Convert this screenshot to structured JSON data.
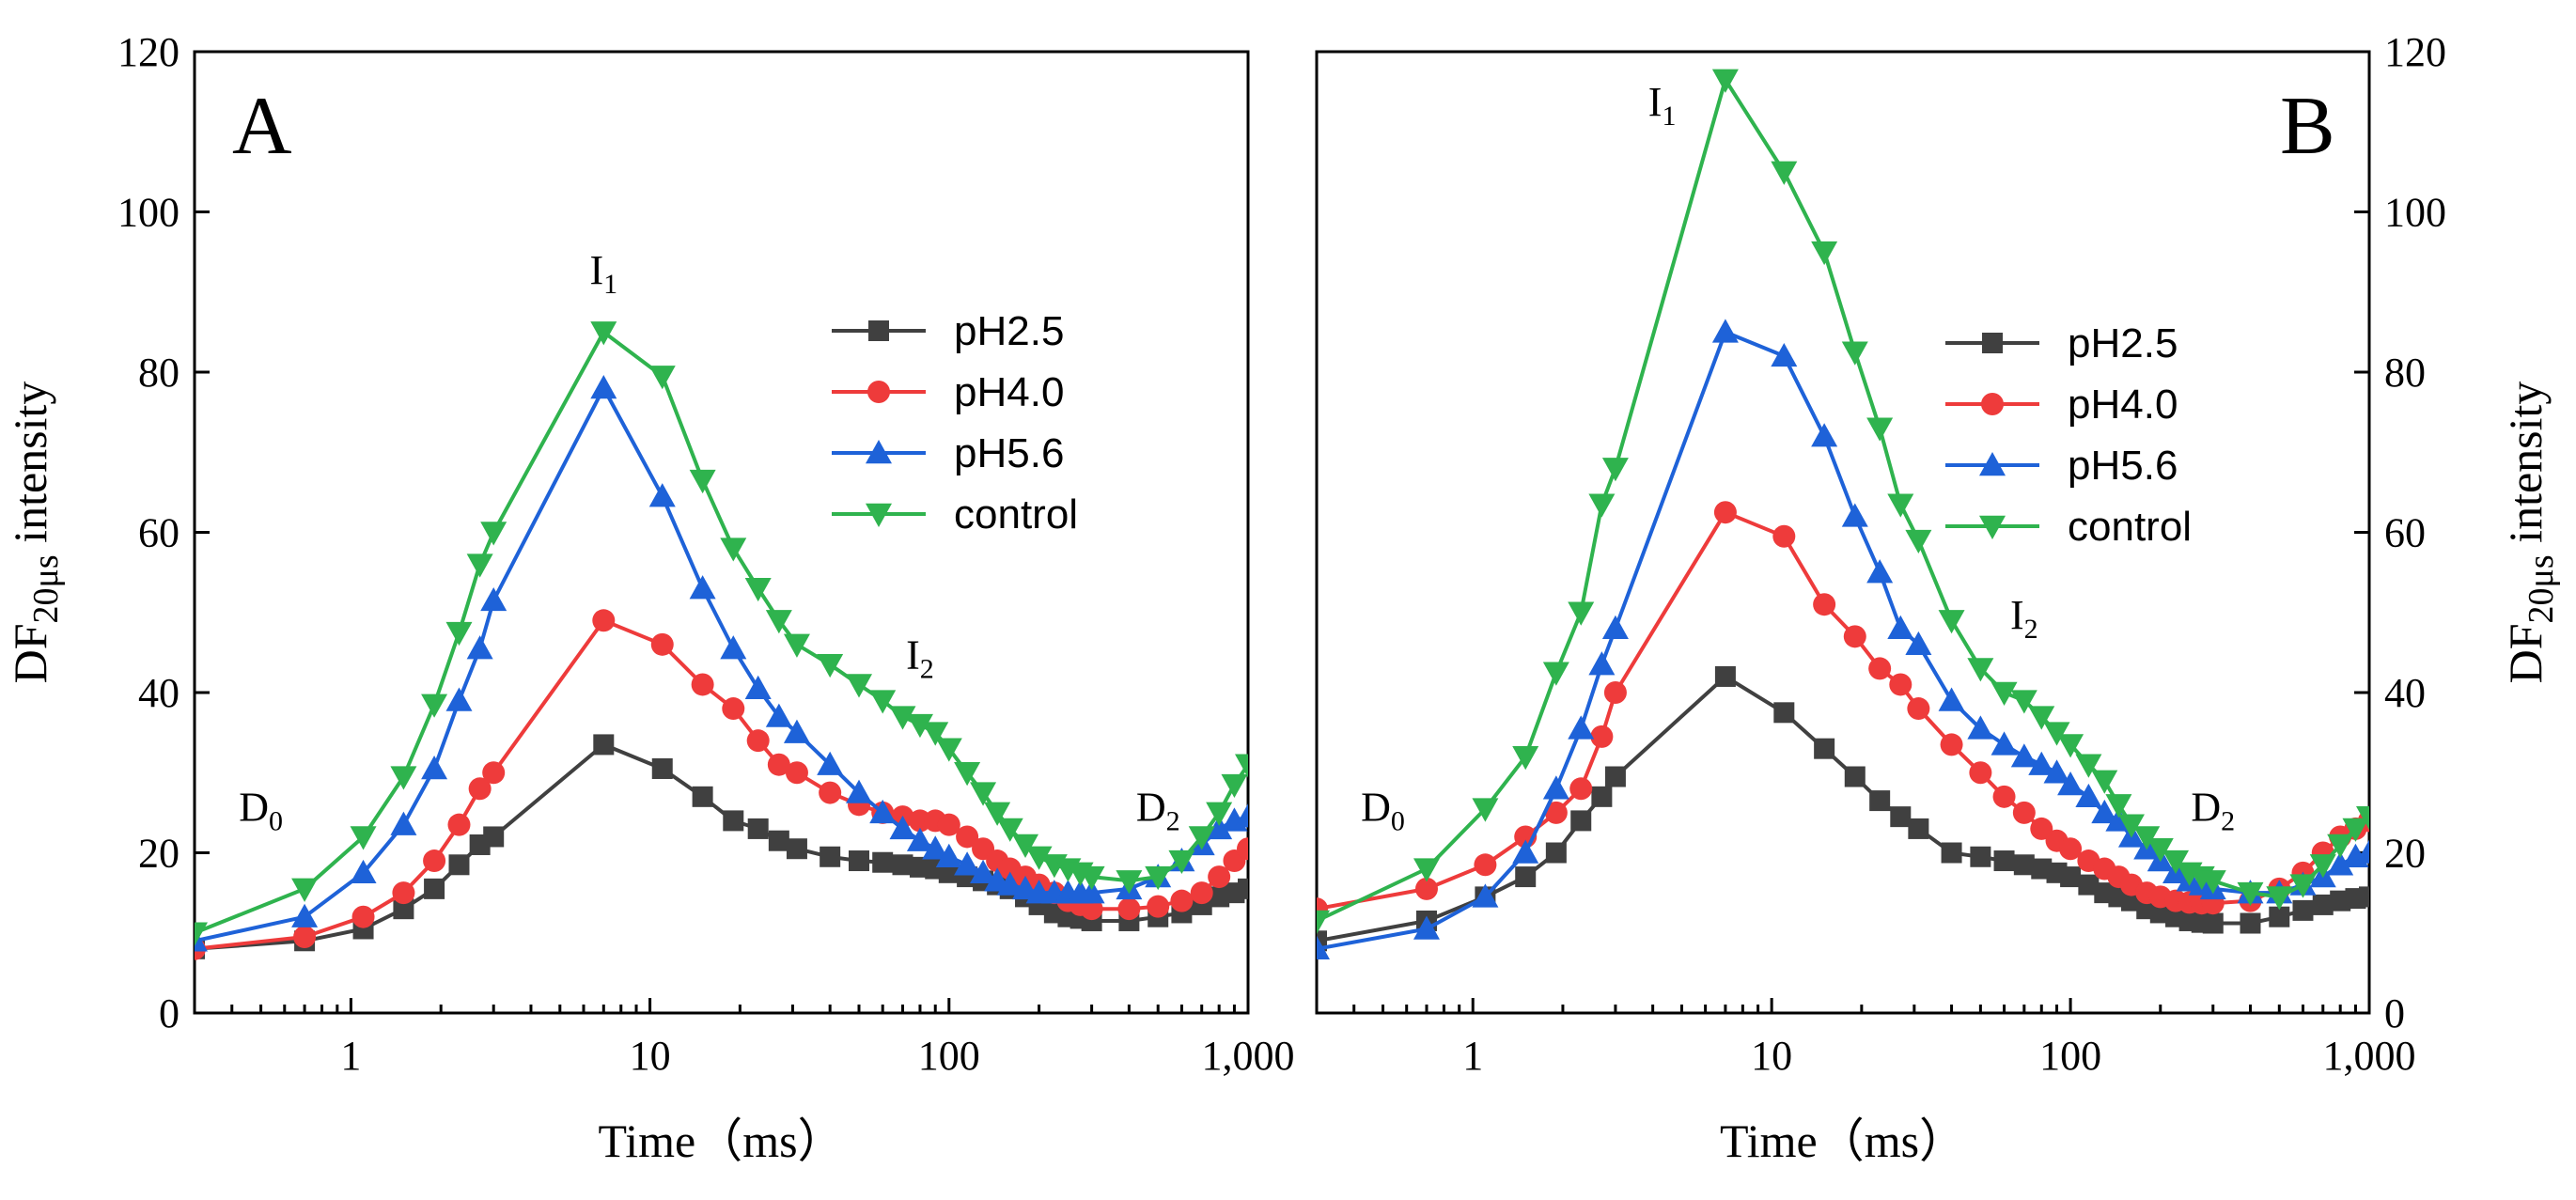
{
  "chart_data": [
    {
      "type": "line",
      "panel_label": "A",
      "xlabel": "Time（ms）",
      "ylabel": {
        "main": "DF",
        "sub": "20μs",
        "rest": " intensity"
      },
      "xscale": "log",
      "xlim": [
        0.3,
        1000
      ],
      "ylim": [
        0,
        120
      ],
      "xticks": [
        1,
        10,
        100,
        1000
      ],
      "xtick_labels": [
        "1",
        "10",
        "100",
        "1,000"
      ],
      "yticks": [
        0,
        20,
        40,
        60,
        80,
        100,
        120
      ],
      "ytick_labels": [
        "0",
        "20",
        "40",
        "60",
        "80",
        "100",
        "120"
      ],
      "yaxis_side": "left",
      "legend_position": "upper-right",
      "annotations": [
        {
          "main": "D",
          "sub": "0",
          "x": 0.5,
          "y": 24
        },
        {
          "main": "I",
          "sub": "1",
          "x": 7,
          "y": 91
        },
        {
          "main": "I",
          "sub": "2",
          "x": 80,
          "y": 43
        },
        {
          "main": "D",
          "sub": "2",
          "x": 500,
          "y": 24
        }
      ],
      "series": [
        {
          "name": "pH2.5",
          "color": "#404040",
          "marker": "square",
          "x": [
            0.3,
            0.7,
            1.1,
            1.5,
            1.9,
            2.3,
            2.7,
            3,
            7,
            11,
            15,
            19,
            23,
            27,
            31,
            40,
            50,
            60,
            70,
            80,
            90,
            100,
            115,
            130,
            145,
            160,
            180,
            200,
            225,
            250,
            275,
            300,
            400,
            500,
            600,
            700,
            800,
            900,
            1000
          ],
          "y": [
            8,
            9,
            10.5,
            13,
            15.5,
            18.5,
            21,
            22,
            33.5,
            30.5,
            27,
            24,
            23,
            21.5,
            20.5,
            19.5,
            19,
            18.8,
            18.5,
            18.2,
            18,
            17.5,
            17,
            16.5,
            16,
            15.5,
            14.5,
            13.5,
            12.5,
            12,
            11.8,
            11.5,
            11.5,
            12,
            12.5,
            13.5,
            14.5,
            15,
            15.5
          ]
        },
        {
          "name": "pH4.0",
          "color": "#ee3b3b",
          "marker": "circle",
          "x": [
            0.3,
            0.7,
            1.1,
            1.5,
            1.9,
            2.3,
            2.7,
            3,
            7,
            11,
            15,
            19,
            23,
            27,
            31,
            40,
            50,
            60,
            70,
            80,
            90,
            100,
            115,
            130,
            145,
            160,
            180,
            200,
            225,
            250,
            275,
            300,
            400,
            500,
            600,
            700,
            800,
            900,
            1000
          ],
          "y": [
            8,
            9.5,
            12,
            15,
            19,
            23.5,
            28,
            30,
            49,
            46,
            41,
            38,
            34,
            31,
            30,
            27.5,
            26,
            25,
            24.5,
            24,
            24,
            23.5,
            22,
            20.5,
            19,
            18,
            17,
            16,
            15,
            14,
            13.5,
            13,
            13,
            13.3,
            14,
            15,
            17,
            19,
            20.5
          ]
        },
        {
          "name": "pH5.6",
          "color": "#1e62d8",
          "marker": "triangle-up",
          "x": [
            0.3,
            0.7,
            1.1,
            1.5,
            1.9,
            2.3,
            2.7,
            3,
            7,
            11,
            15,
            19,
            23,
            27,
            31,
            40,
            50,
            60,
            70,
            80,
            90,
            100,
            115,
            130,
            145,
            160,
            180,
            200,
            225,
            250,
            275,
            300,
            400,
            500,
            600,
            700,
            800,
            900,
            1000
          ],
          "y": [
            9,
            12,
            17.5,
            23.5,
            30.5,
            39,
            45.5,
            51.5,
            78,
            64.5,
            53,
            45.5,
            40.5,
            37,
            35,
            31,
            27.5,
            25,
            23,
            21.5,
            20.5,
            19.5,
            18.5,
            17.5,
            16.5,
            16,
            15.5,
            15,
            15,
            15,
            15,
            15,
            15.5,
            17,
            19,
            21,
            23,
            24,
            24.5
          ]
        },
        {
          "name": "control",
          "color": "#2fb34e",
          "marker": "triangle-down",
          "x": [
            0.3,
            0.7,
            1.1,
            1.5,
            1.9,
            2.3,
            2.7,
            3,
            7,
            11,
            15,
            19,
            23,
            27,
            31,
            40,
            50,
            60,
            70,
            80,
            90,
            100,
            115,
            130,
            145,
            160,
            180,
            200,
            225,
            250,
            275,
            300,
            400,
            500,
            600,
            700,
            800,
            900,
            1000
          ],
          "y": [
            10,
            15.5,
            22,
            29.5,
            38.5,
            47.5,
            56,
            60,
            85,
            79.5,
            66.5,
            58,
            53,
            49,
            46,
            43.5,
            41,
            39,
            37,
            36,
            35,
            33,
            30,
            27.5,
            25,
            23,
            21,
            19.5,
            18.5,
            18,
            17.5,
            17,
            16.5,
            17,
            19,
            22,
            25,
            28.5,
            31
          ]
        }
      ]
    },
    {
      "type": "line",
      "panel_label": "B",
      "xlabel": "Time（ms）",
      "ylabel": {
        "main": "DF",
        "sub": "20μs",
        "rest": " intensity"
      },
      "xscale": "log",
      "xlim": [
        0.3,
        1000
      ],
      "ylim": [
        0,
        120
      ],
      "xticks": [
        1,
        10,
        100,
        1000
      ],
      "xtick_labels": [
        "1",
        "10",
        "100",
        "1,000"
      ],
      "yticks": [
        0,
        20,
        40,
        60,
        80,
        100,
        120
      ],
      "ytick_labels": [
        "0",
        "20",
        "40",
        "60",
        "80",
        "100",
        "120"
      ],
      "yaxis_side": "right",
      "legend_position": "upper-right",
      "annotations": [
        {
          "main": "D",
          "sub": "0",
          "x": 0.5,
          "y": 24
        },
        {
          "main": "I",
          "sub": "1",
          "x": 4.3,
          "y": 112
        },
        {
          "main": "I",
          "sub": "2",
          "x": 70,
          "y": 48
        },
        {
          "main": "D",
          "sub": "2",
          "x": 300,
          "y": 24
        }
      ],
      "series": [
        {
          "name": "pH2.5",
          "color": "#404040",
          "marker": "square",
          "x": [
            0.3,
            0.7,
            1.1,
            1.5,
            1.9,
            2.3,
            2.7,
            3,
            7,
            11,
            15,
            19,
            23,
            27,
            31,
            40,
            50,
            60,
            70,
            80,
            90,
            100,
            115,
            130,
            145,
            160,
            180,
            200,
            225,
            250,
            275,
            300,
            400,
            500,
            600,
            700,
            800,
            900,
            1000
          ],
          "y": [
            9,
            11.5,
            14.5,
            17,
            20,
            24,
            27,
            29.5,
            42,
            37.5,
            33,
            29.5,
            26.5,
            24.5,
            23,
            20,
            19.5,
            19,
            18.5,
            18,
            17.5,
            17,
            16,
            15,
            14.5,
            14,
            13,
            12.5,
            12,
            11.5,
            11.3,
            11.2,
            11.2,
            12,
            12.8,
            13.5,
            14,
            14.3,
            14.5
          ]
        },
        {
          "name": "pH4.0",
          "color": "#ee3b3b",
          "marker": "circle",
          "x": [
            0.3,
            0.7,
            1.1,
            1.5,
            1.9,
            2.3,
            2.7,
            3,
            7,
            11,
            15,
            19,
            23,
            27,
            31,
            40,
            50,
            60,
            70,
            80,
            90,
            100,
            115,
            130,
            145,
            160,
            180,
            200,
            225,
            250,
            275,
            300,
            400,
            500,
            600,
            700,
            800,
            900,
            1000
          ],
          "y": [
            13,
            15.5,
            18.5,
            22,
            25,
            28,
            34.5,
            40,
            62.5,
            59.5,
            51,
            47,
            43,
            41,
            38,
            33.5,
            30,
            27,
            25,
            23,
            21.5,
            20.5,
            19,
            18,
            17,
            16,
            15,
            14.5,
            14,
            13.8,
            13.7,
            13.7,
            14,
            15.5,
            17.5,
            20,
            22,
            23,
            24
          ]
        },
        {
          "name": "pH5.6",
          "color": "#1e62d8",
          "marker": "triangle-up",
          "x": [
            0.3,
            0.7,
            1.1,
            1.5,
            1.9,
            2.3,
            2.7,
            3,
            7,
            11,
            15,
            19,
            23,
            27,
            31,
            40,
            50,
            60,
            70,
            80,
            90,
            100,
            115,
            130,
            145,
            160,
            180,
            200,
            225,
            250,
            275,
            300,
            400,
            500,
            600,
            700,
            800,
            900,
            1000
          ],
          "y": [
            8,
            10.5,
            14.5,
            20,
            28,
            35.5,
            43.5,
            48,
            85,
            82,
            72,
            62,
            55,
            48,
            46,
            39,
            35.5,
            33.5,
            32,
            31,
            30,
            28.5,
            27,
            25,
            24,
            22,
            20.5,
            19,
            17.5,
            16.5,
            16,
            15.5,
            15,
            15,
            16,
            17,
            18.5,
            19.5,
            20
          ]
        },
        {
          "name": "control",
          "color": "#2fb34e",
          "marker": "triangle-down",
          "x": [
            0.3,
            0.7,
            1.1,
            1.5,
            1.9,
            2.3,
            2.7,
            3,
            7,
            11,
            15,
            19,
            23,
            27,
            31,
            40,
            50,
            60,
            70,
            80,
            90,
            100,
            115,
            130,
            145,
            160,
            180,
            200,
            225,
            250,
            275,
            300,
            400,
            500,
            600,
            700,
            800,
            900,
            1000
          ],
          "y": [
            11.5,
            18,
            25.5,
            32,
            42.5,
            50,
            63.5,
            68,
            116.5,
            105,
            95,
            82.5,
            73,
            63.5,
            59,
            49,
            43,
            40,
            39,
            37,
            35,
            33.5,
            31,
            29,
            26,
            23.5,
            22,
            20.5,
            19,
            17.5,
            17,
            16.5,
            15,
            14.5,
            16,
            18.5,
            21,
            23,
            24.5
          ]
        }
      ]
    }
  ]
}
